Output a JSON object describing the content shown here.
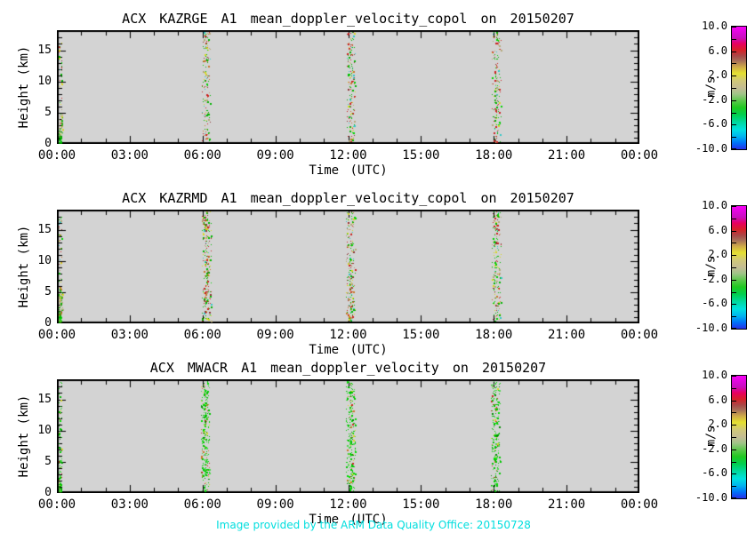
{
  "figure": {
    "background": "#ffffff",
    "plot_background": "#d3d3d3",
    "frame_color": "#000000",
    "caption": {
      "text": "Image provided by the ARM Data Quality Office: 20150728",
      "color": "#00dede"
    }
  },
  "axes": {
    "x_label": "Time (UTC)",
    "y_label": "Height (km)",
    "x_tick_labels": [
      "00:00",
      "03:00",
      "06:00",
      "09:00",
      "12:00",
      "15:00",
      "18:00",
      "21:00",
      "00:00"
    ],
    "x_tick_hours": [
      0,
      3,
      6,
      9,
      12,
      15,
      18,
      21,
      24
    ],
    "x_minor_step_hours": 1,
    "x_range_hours": [
      0,
      24
    ],
    "y_tick_labels": [
      "0",
      "5",
      "10",
      "15"
    ],
    "y_tick_km": [
      0,
      5,
      10,
      15
    ],
    "y_minor_step_km": 1,
    "y_range_km": [
      0,
      18.2
    ]
  },
  "colorbar": {
    "label": "m/s",
    "range": [
      -10.0,
      10.0
    ],
    "tick_values": [
      10.0,
      6.0,
      2.0,
      -2.0,
      -6.0,
      -10.0
    ],
    "tick_labels": [
      "10.0",
      "6.0",
      "2.0",
      "-2.0",
      "-6.0",
      "-10.0"
    ],
    "minor_tick_step": 2.0,
    "gradient_stops_bottom_to_top": [
      [
        0.0,
        "#2830e8"
      ],
      [
        0.05,
        "#0070f8"
      ],
      [
        0.1,
        "#00b0f0"
      ],
      [
        0.16,
        "#00e0e0"
      ],
      [
        0.22,
        "#00d8a0"
      ],
      [
        0.28,
        "#00d050"
      ],
      [
        0.34,
        "#20c820"
      ],
      [
        0.4,
        "#60c850"
      ],
      [
        0.45,
        "#a0c488"
      ],
      [
        0.5,
        "#c4bc94"
      ],
      [
        0.56,
        "#d0c878"
      ],
      [
        0.62,
        "#e4e030"
      ],
      [
        0.67,
        "#d0ac48"
      ],
      [
        0.72,
        "#a87058"
      ],
      [
        0.76,
        "#a84848"
      ],
      [
        0.81,
        "#d82028"
      ],
      [
        0.86,
        "#e80060"
      ],
      [
        0.91,
        "#c810c0"
      ],
      [
        1.0,
        "#f800f8"
      ]
    ]
  },
  "palettes": {
    "mixed": {
      "colors": [
        "#00b400",
        "#00d400",
        "#cc2020",
        "#8c3434",
        "#d8d820",
        "#c87828",
        "#b4a878",
        "#30c8c8"
      ],
      "weights": [
        24,
        10,
        15,
        8,
        13,
        10,
        14,
        6
      ]
    },
    "tan_mix": {
      "colors": [
        "#b4a878",
        "#c8bc8c",
        "#00b400",
        "#d8d820",
        "#c87828"
      ],
      "weights": [
        34,
        22,
        24,
        12,
        8
      ]
    },
    "dense_green": {
      "colors": [
        "#00c800",
        "#00e000",
        "#009600",
        "#a0c850",
        "#d8d820"
      ],
      "weights": [
        40,
        22,
        20,
        10,
        8
      ]
    },
    "green": {
      "colors": [
        "#00c800",
        "#00e000",
        "#008c00",
        "#50d850",
        "#d8d820",
        "#cc2020",
        "#c87828"
      ],
      "weights": [
        40,
        18,
        12,
        14,
        6,
        5,
        5
      ]
    }
  },
  "chart_data": [
    {
      "type": "heatmap",
      "title": "ACX KAZRGE A1 mean_doppler_velocity_copol on 20150207",
      "events": [
        {
          "kind": "column",
          "hour_start": 0.0,
          "hour_end": 0.18,
          "km_min": 0,
          "km_max": 18.2,
          "density": 0.07,
          "palette": "mixed"
        },
        {
          "kind": "column",
          "hour_start": 0.0,
          "hour_end": 0.22,
          "km_min": 1.6,
          "km_max": 4.8,
          "density": 0.3,
          "palette": "tan_mix"
        },
        {
          "kind": "column",
          "hour_start": 0.0,
          "hour_end": 0.15,
          "km_min": 0,
          "km_max": 1.6,
          "density": 0.8,
          "palette": "dense_green"
        },
        {
          "kind": "stripe",
          "hour_center": 6.15,
          "hour_width": 0.34,
          "km_min": 0,
          "km_max": 18.2,
          "density": 0.2,
          "palette": "mixed"
        },
        {
          "kind": "stripe",
          "hour_center": 12.1,
          "hour_width": 0.34,
          "km_min": 0,
          "km_max": 18.2,
          "density": 0.2,
          "palette": "mixed"
        },
        {
          "kind": "stripe",
          "hour_center": 18.1,
          "hour_width": 0.34,
          "km_min": 0,
          "km_max": 18.2,
          "density": 0.2,
          "palette": "mixed"
        }
      ]
    },
    {
      "type": "heatmap",
      "title": "ACX KAZRMD A1 mean_doppler_velocity_copol on 20150207",
      "events": [
        {
          "kind": "column",
          "hour_start": 0.0,
          "hour_end": 0.18,
          "km_min": 0,
          "km_max": 18.2,
          "density": 0.12,
          "palette": "mixed"
        },
        {
          "kind": "column",
          "hour_start": 0.0,
          "hour_end": 0.22,
          "km_min": 1.6,
          "km_max": 5.0,
          "density": 0.32,
          "palette": "tan_mix"
        },
        {
          "kind": "column",
          "hour_start": 0.0,
          "hour_end": 0.15,
          "km_min": 0,
          "km_max": 1.6,
          "density": 0.82,
          "palette": "dense_green"
        },
        {
          "kind": "stripe",
          "hour_center": 6.15,
          "hour_width": 0.36,
          "km_min": 0,
          "km_max": 18.2,
          "density": 0.24,
          "palette": "mixed"
        },
        {
          "kind": "stripe",
          "hour_center": 12.1,
          "hour_width": 0.36,
          "km_min": 0,
          "km_max": 18.2,
          "density": 0.24,
          "palette": "mixed"
        },
        {
          "kind": "stripe",
          "hour_center": 18.1,
          "hour_width": 0.36,
          "km_min": 0,
          "km_max": 18.2,
          "density": 0.24,
          "palette": "mixed"
        }
      ]
    },
    {
      "type": "heatmap",
      "title": "ACX MWACR A1 mean_doppler_velocity on 20150207",
      "events": [
        {
          "kind": "column",
          "hour_start": 0.0,
          "hour_end": 0.18,
          "km_min": 0,
          "km_max": 18.2,
          "density": 0.18,
          "palette": "green"
        },
        {
          "kind": "column",
          "hour_start": 0.0,
          "hour_end": 0.15,
          "km_min": 0,
          "km_max": 1.4,
          "density": 0.8,
          "palette": "dense_green"
        },
        {
          "kind": "stripe",
          "hour_center": 6.1,
          "hour_width": 0.36,
          "km_min": 0,
          "km_max": 18.2,
          "density": 0.28,
          "palette": "green"
        },
        {
          "kind": "stripe",
          "hour_center": 12.1,
          "hour_width": 0.36,
          "km_min": 0,
          "km_max": 18.2,
          "density": 0.28,
          "palette": "green"
        },
        {
          "kind": "stripe",
          "hour_center": 18.05,
          "hour_width": 0.36,
          "km_min": 0,
          "km_max": 18.2,
          "density": 0.28,
          "palette": "green"
        }
      ]
    }
  ]
}
